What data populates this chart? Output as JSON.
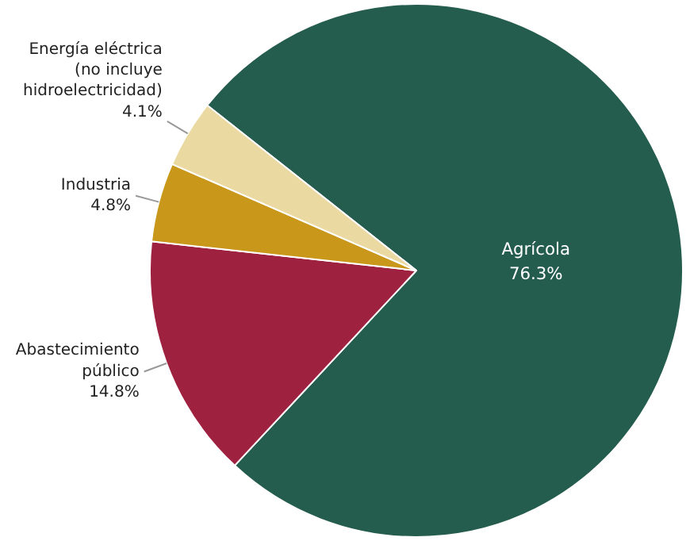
{
  "chart_data": {
    "type": "pie",
    "categories": [
      "Agrícola",
      "Abastecimiento\npúblico",
      "Industria",
      "Energía eléctrica\n(no incluye\nhidroelectricidad)"
    ],
    "values": [
      76.3,
      14.8,
      4.8,
      4.1
    ],
    "colors": [
      "#245c4e",
      "#9e2140",
      "#c9971a",
      "#ead9a0"
    ],
    "value_labels": [
      "76.3%",
      "14.8%",
      "4.8%",
      "4.1%"
    ]
  }
}
